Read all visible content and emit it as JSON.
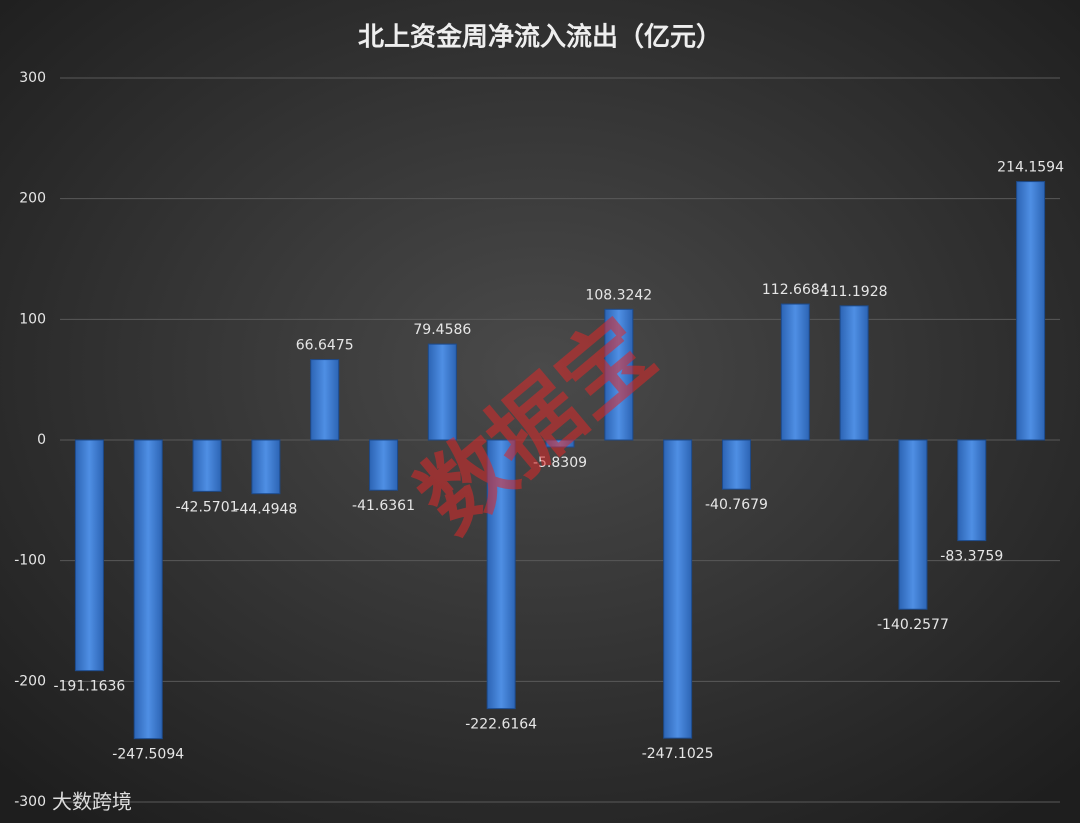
{
  "chart_data": {
    "type": "bar",
    "title": "北上资金周净流入流出（亿元）",
    "categories": [
      null,
      null,
      null,
      null,
      null,
      null,
      null,
      null,
      null,
      null,
      null,
      null,
      null,
      null,
      null,
      null,
      null
    ],
    "values": [
      -191.1636,
      -247.5094,
      -42.5701,
      -44.4948,
      66.6475,
      -41.6361,
      79.4586,
      -222.6164,
      -5.8309,
      108.3242,
      -247.1025,
      -40.7679,
      112.6684,
      111.1928,
      -140.2577,
      -83.3759,
      214.1594
    ],
    "color": "#3f7fd6",
    "ylim": [
      -300,
      300
    ],
    "yticks": [
      -300,
      -200,
      -100,
      0,
      100,
      200,
      300
    ],
    "grid": true,
    "watermark": "数据宝",
    "source": "大数跨境"
  }
}
